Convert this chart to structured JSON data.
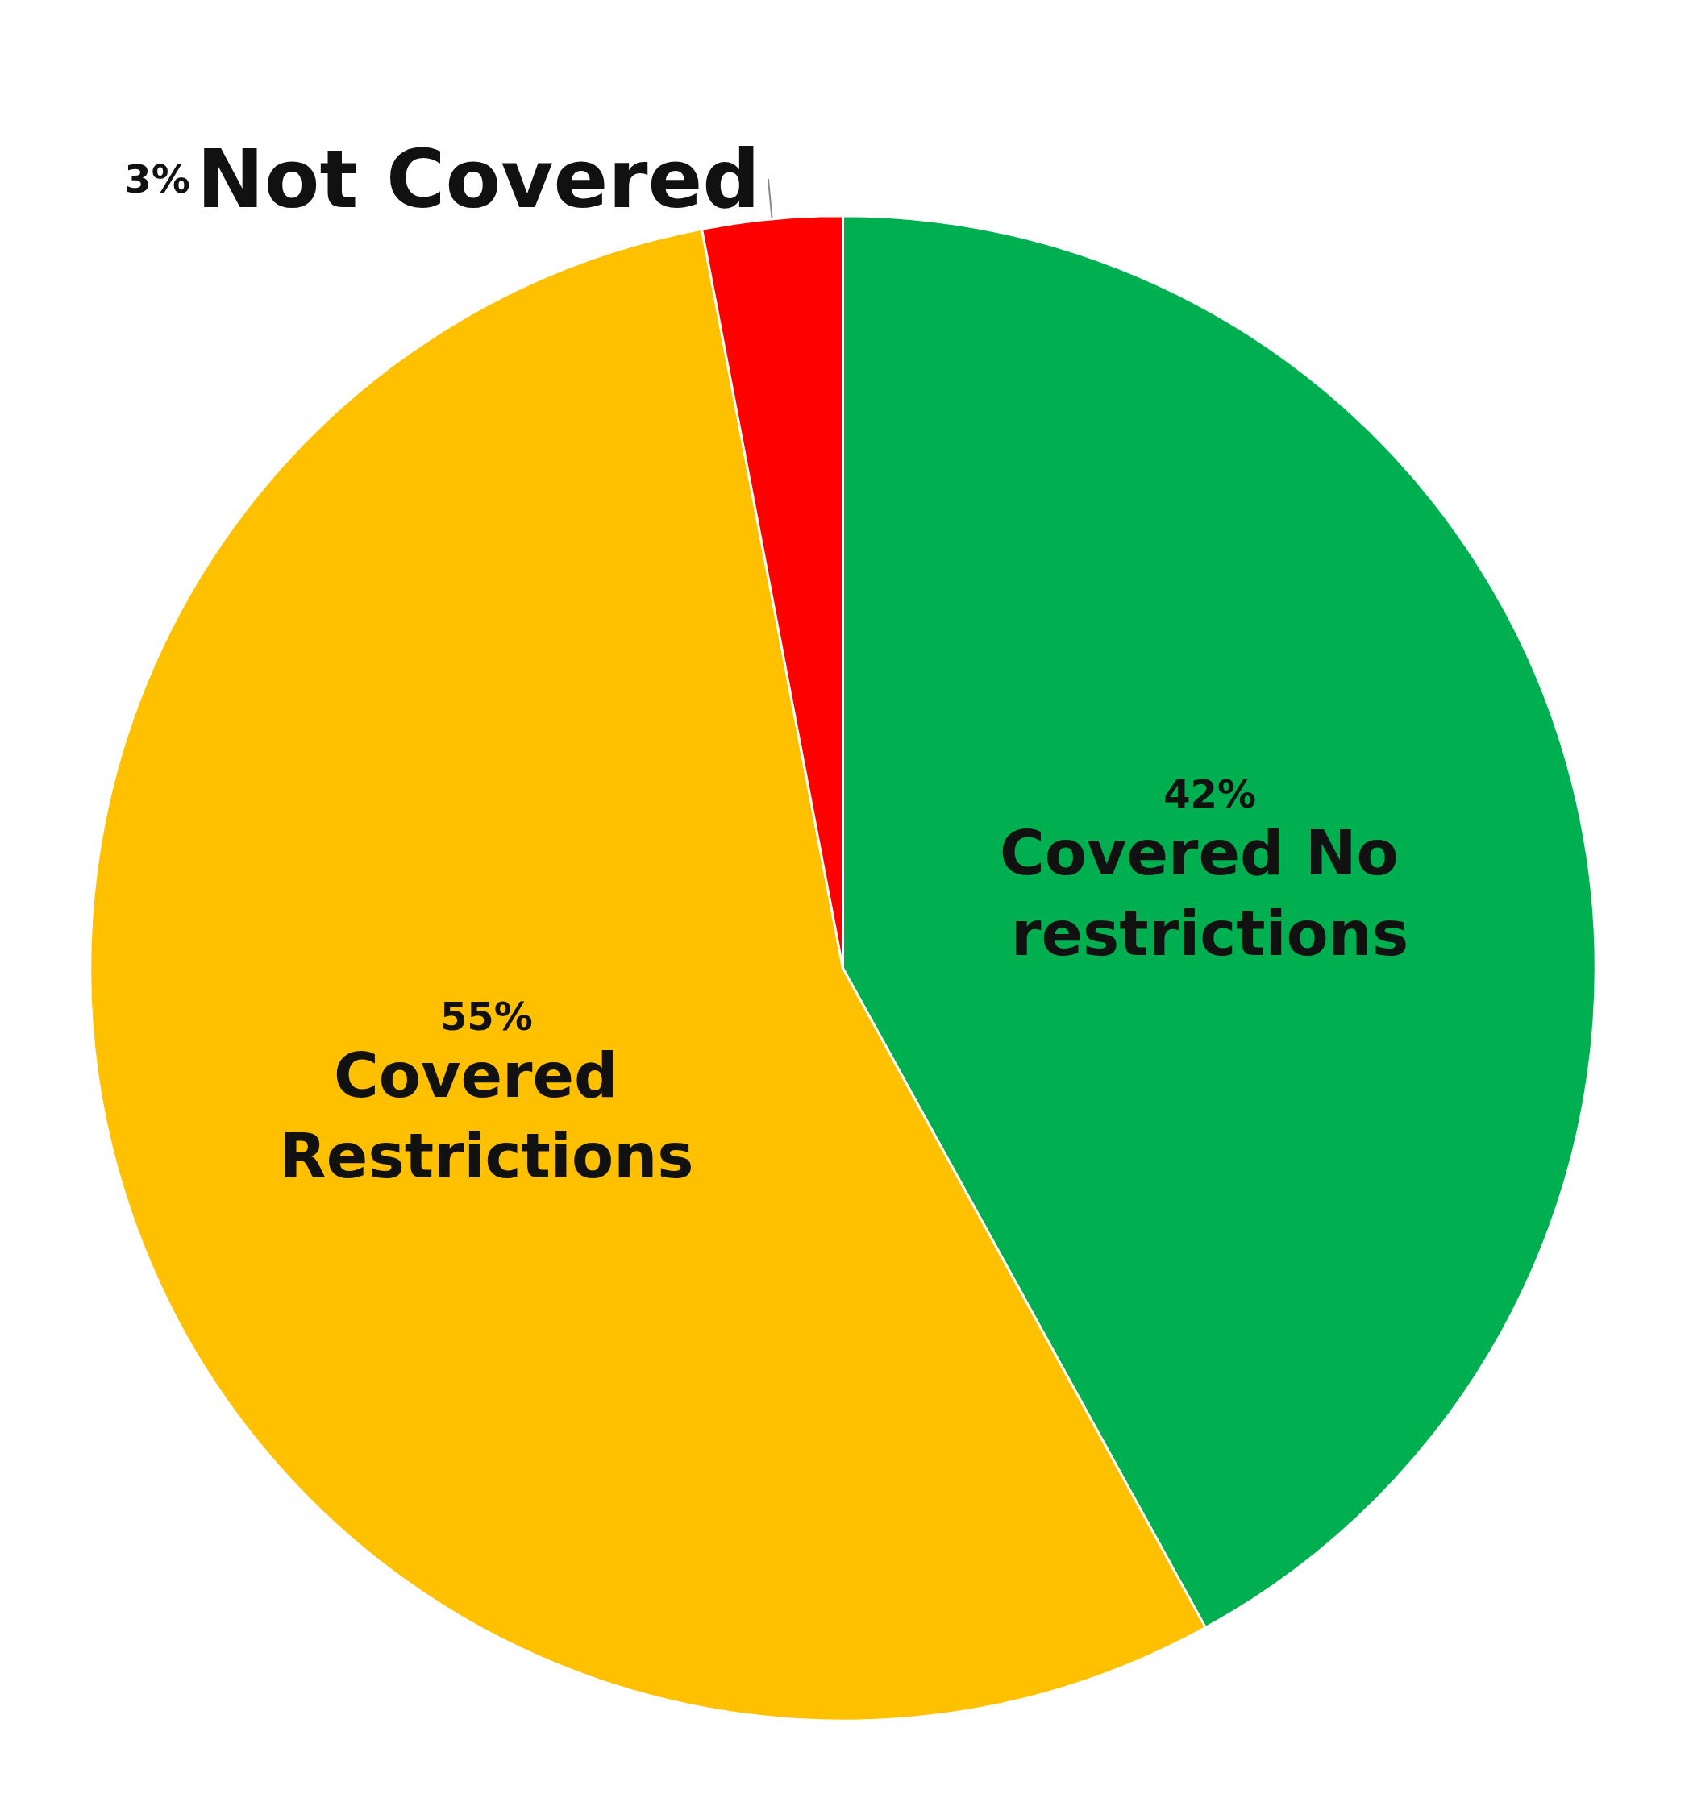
{
  "chart_data": {
    "type": "pie",
    "categories": [
      "Covered No restrictions",
      "Covered Restrictions",
      "Not Covered"
    ],
    "values": [
      42,
      55,
      3
    ],
    "value_labels": [
      "42%",
      "55%",
      "3%"
    ],
    "colors": [
      "#00b050",
      "#ffc000",
      "#ff0000"
    ],
    "legend": false
  }
}
